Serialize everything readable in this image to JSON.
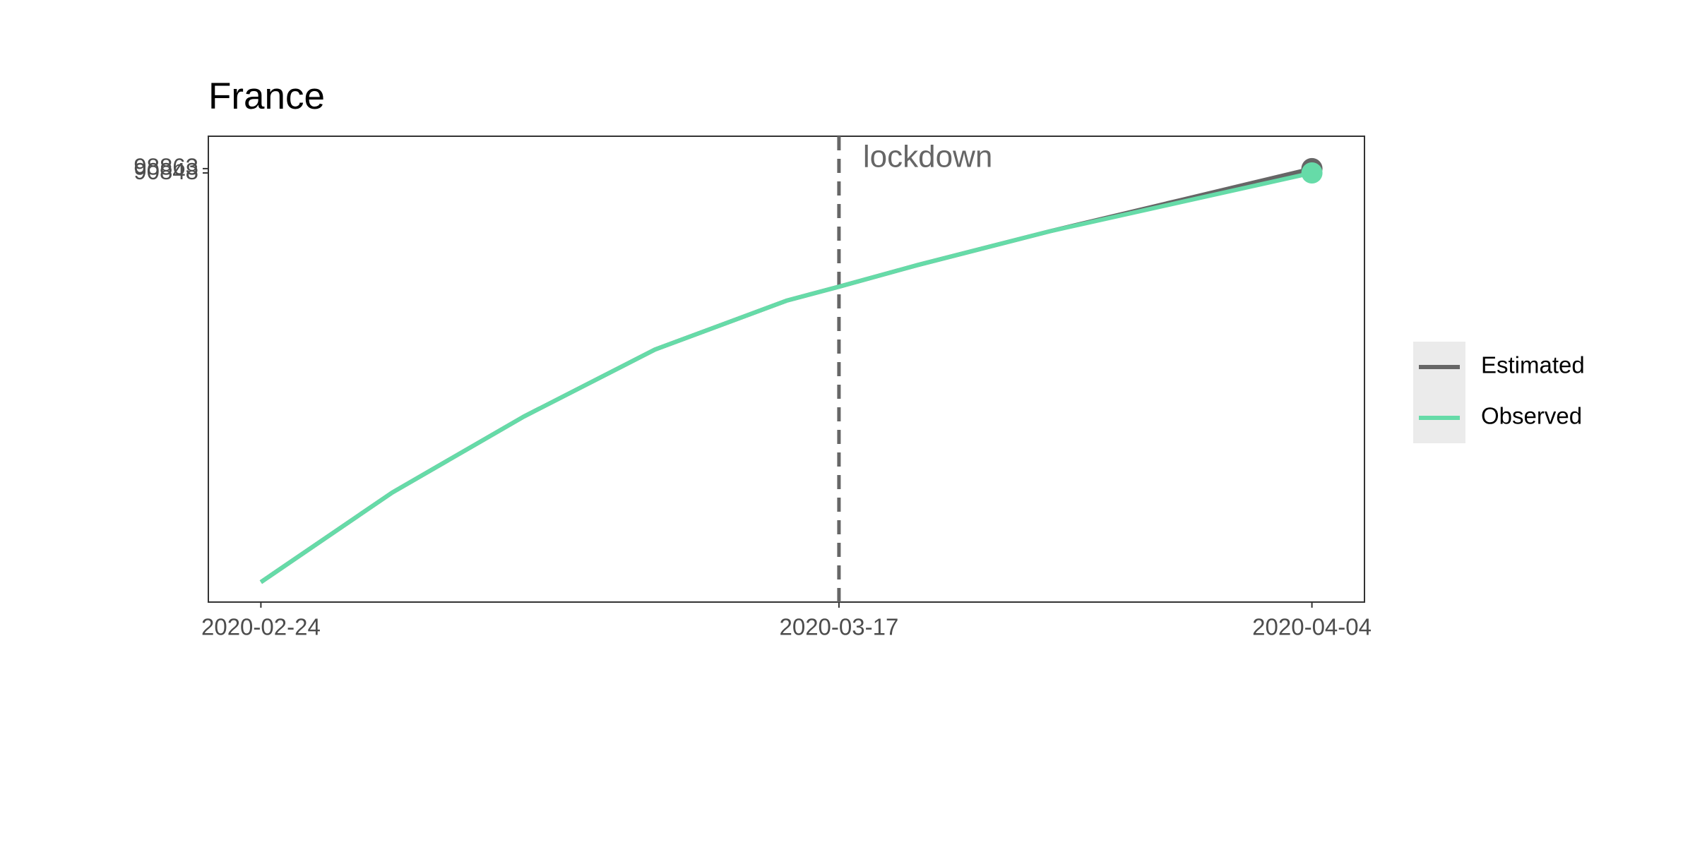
{
  "chart_data": {
    "type": "line",
    "title": "France",
    "x": [
      "2020-02-24",
      "2020-02-29",
      "2020-03-05",
      "2020-03-10",
      "2020-03-15",
      "2020-03-17",
      "2020-03-20",
      "2020-03-25",
      "2020-03-30",
      "2020-04-04"
    ],
    "series": [
      {
        "name": "Estimated",
        "color": "#666666",
        "values": [
          31,
          178,
          782,
          2899,
          7513,
          9875,
          15080,
          29030,
          53500,
          98863
        ]
      },
      {
        "name": "Observed",
        "color": "#66dba8",
        "values": [
          31,
          178,
          782,
          2899,
          7513,
          9875,
          15080,
          29030,
          51360,
          90848
        ]
      }
    ],
    "xlim": [
      "2020-02-22",
      "2020-04-06"
    ],
    "xticks": [
      "2020-02-24",
      "2020-03-17",
      "2020-04-04"
    ],
    "ylim": [
      21,
      186000
    ],
    "yticks": [
      98863,
      90848
    ],
    "log_y": true,
    "annotation": {
      "x": "2020-03-17",
      "label": "lockdown"
    },
    "legend": "right"
  }
}
